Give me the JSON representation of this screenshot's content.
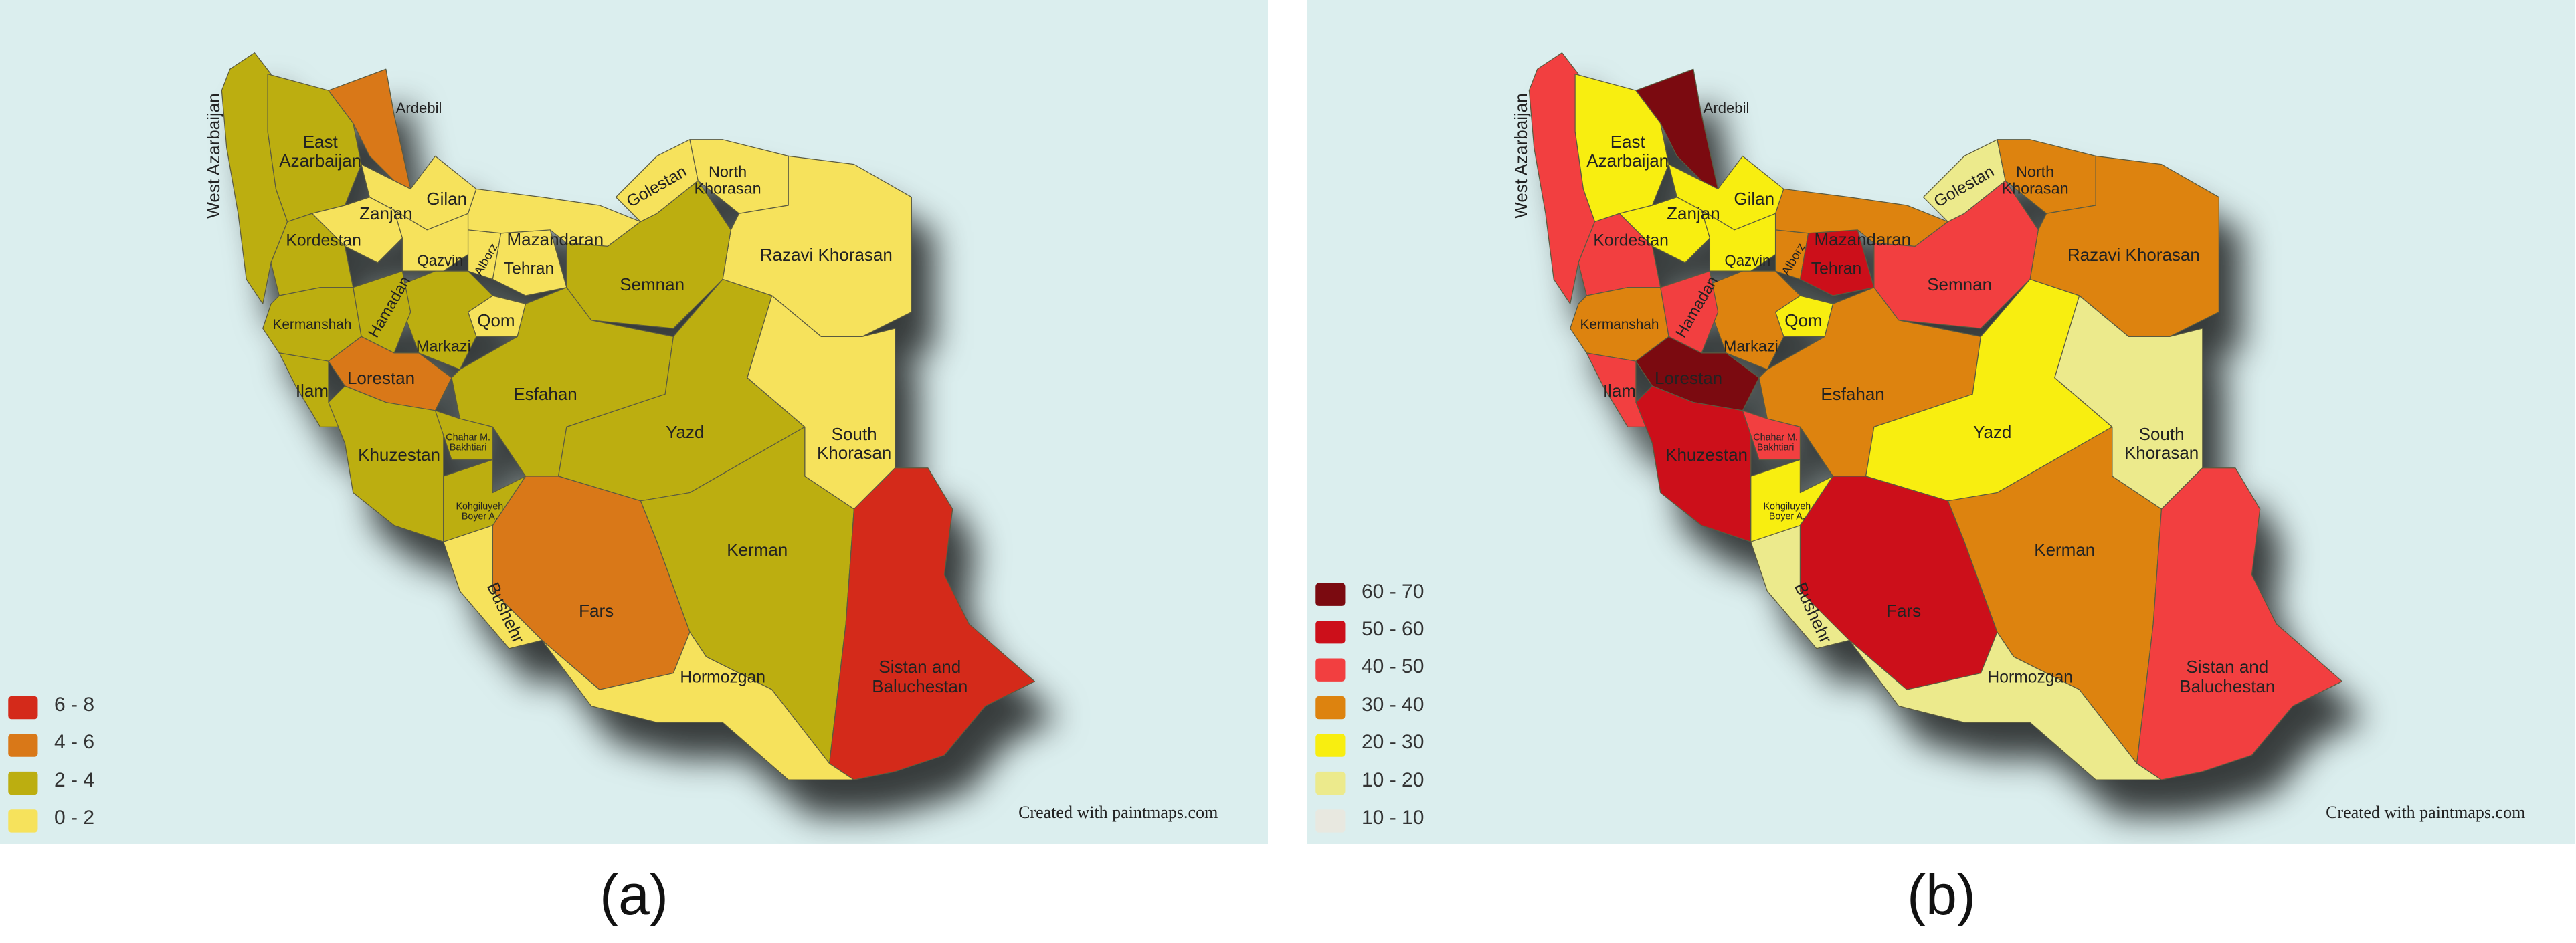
{
  "maps": [
    {
      "caption": "(a)",
      "credit": "Created with paintmaps.com",
      "legend": [
        {
          "label": "6 - 8",
          "color": "#d42a1a"
        },
        {
          "label": "4 - 6",
          "color": "#d97818"
        },
        {
          "label": "2 - 4",
          "color": "#bcae10"
        },
        {
          "label": "0 - 2",
          "color": "#f6e25c"
        }
      ],
      "regions": [
        {
          "name": "West Azarbaijan",
          "color": "#bcae10"
        },
        {
          "name": "East Azarbaijan",
          "color": "#bcae10"
        },
        {
          "name": "Ardebil",
          "color": "#d97818"
        },
        {
          "name": "Gilan",
          "color": "#f6e25c"
        },
        {
          "name": "Zanjan",
          "color": "#f6e25c"
        },
        {
          "name": "Kordestan",
          "color": "#bcae10"
        },
        {
          "name": "Qazvin",
          "color": "#f6e25c"
        },
        {
          "name": "Alborz",
          "color": "#f6e25c"
        },
        {
          "name": "Tehran",
          "color": "#f6e25c"
        },
        {
          "name": "Mazandaran",
          "color": "#f6e25c"
        },
        {
          "name": "Golestan",
          "color": "#f6e25c"
        },
        {
          "name": "North Khorasan",
          "color": "#f6e25c"
        },
        {
          "name": "Razavi Khorasan",
          "color": "#f6e25c"
        },
        {
          "name": "Semnan",
          "color": "#bcae10"
        },
        {
          "name": "Qom",
          "color": "#f6e25c"
        },
        {
          "name": "Markazi",
          "color": "#bcae10"
        },
        {
          "name": "Hamadan",
          "color": "#bcae10"
        },
        {
          "name": "Kermanshah",
          "color": "#bcae10"
        },
        {
          "name": "Ilam",
          "color": "#bcae10"
        },
        {
          "name": "Lorestan",
          "color": "#d97818"
        },
        {
          "name": "Esfahan",
          "color": "#bcae10"
        },
        {
          "name": "Khuzestan",
          "color": "#bcae10"
        },
        {
          "name": "Chahar M. Bakhtiari",
          "color": "#bcae10"
        },
        {
          "name": "Kohgiluyeh Boyer A.",
          "color": "#bcae10"
        },
        {
          "name": "Yazd",
          "color": "#bcae10"
        },
        {
          "name": "South Khorasan",
          "color": "#f6e25c"
        },
        {
          "name": "Kerman",
          "color": "#bcae10"
        },
        {
          "name": "Fars",
          "color": "#d97818"
        },
        {
          "name": "Bushehr",
          "color": "#f6e25c"
        },
        {
          "name": "Hormozgan",
          "color": "#f6e25c"
        },
        {
          "name": "Sistan and Baluchestan",
          "color": "#d42a1a"
        }
      ]
    },
    {
      "caption": "(b)",
      "credit": "Created with paintmaps.com",
      "legend": [
        {
          "label": "60 - 70",
          "color": "#7b0a10"
        },
        {
          "label": "50 - 60",
          "color": "#cc0f1a"
        },
        {
          "label": "40 - 50",
          "color": "#f23f40"
        },
        {
          "label": "30 - 40",
          "color": "#dd830f"
        },
        {
          "label": "20 - 30",
          "color": "#f8ee10"
        },
        {
          "label": "10 - 20",
          "color": "#ecea8c"
        },
        {
          "label": "10 - 10",
          "color": "#e8e8e0"
        }
      ],
      "regions": [
        {
          "name": "West Azarbaijan",
          "color": "#f23f40"
        },
        {
          "name": "East Azarbaijan",
          "color": "#f8ee10"
        },
        {
          "name": "Ardebil",
          "color": "#7b0a10"
        },
        {
          "name": "Gilan",
          "color": "#f8ee10"
        },
        {
          "name": "Zanjan",
          "color": "#f8ee10"
        },
        {
          "name": "Kordestan",
          "color": "#f23f40"
        },
        {
          "name": "Qazvin",
          "color": "#f8ee10"
        },
        {
          "name": "Alborz",
          "color": "#dd830f"
        },
        {
          "name": "Tehran",
          "color": "#cc0f1a"
        },
        {
          "name": "Mazandaran",
          "color": "#dd830f"
        },
        {
          "name": "Golestan",
          "color": "#ecea8c"
        },
        {
          "name": "North Khorasan",
          "color": "#dd830f"
        },
        {
          "name": "Razavi Khorasan",
          "color": "#dd830f"
        },
        {
          "name": "Semnan",
          "color": "#f23f40"
        },
        {
          "name": "Qom",
          "color": "#f8ee10"
        },
        {
          "name": "Markazi",
          "color": "#dd830f"
        },
        {
          "name": "Hamadan",
          "color": "#f23f40"
        },
        {
          "name": "Kermanshah",
          "color": "#dd830f"
        },
        {
          "name": "Ilam",
          "color": "#f23f40"
        },
        {
          "name": "Lorestan",
          "color": "#7b0a10"
        },
        {
          "name": "Esfahan",
          "color": "#dd830f"
        },
        {
          "name": "Khuzestan",
          "color": "#cc0f1a"
        },
        {
          "name": "Chahar M. Bakhtiari",
          "color": "#f23f40"
        },
        {
          "name": "Kohgiluyeh Boyer A.",
          "color": "#f8ee10"
        },
        {
          "name": "Yazd",
          "color": "#f8ee10"
        },
        {
          "name": "South Khorasan",
          "color": "#ecea8c"
        },
        {
          "name": "Kerman",
          "color": "#dd830f"
        },
        {
          "name": "Fars",
          "color": "#cc0f1a"
        },
        {
          "name": "Bushehr",
          "color": "#ecea8c"
        },
        {
          "name": "Hormozgan",
          "color": "#ecea8c"
        },
        {
          "name": "Sistan and Baluchestan",
          "color": "#f23f40"
        }
      ]
    }
  ]
}
